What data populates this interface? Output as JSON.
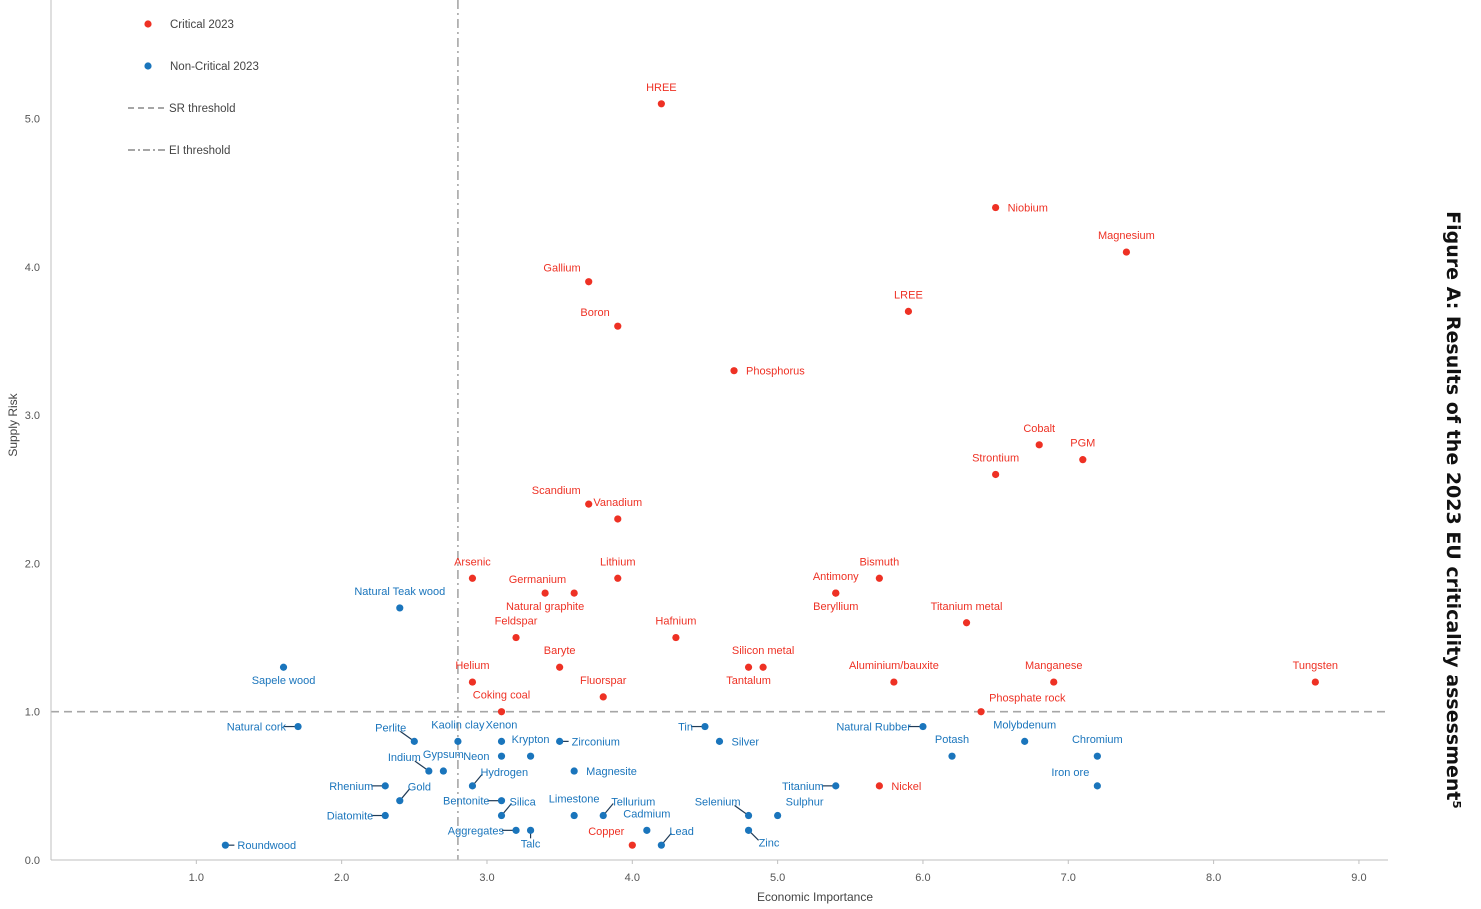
{
  "figure_title": "Figure A: Results of the 2023 EU criticality assessment⁵",
  "colors": {
    "critical": "#ee3124",
    "non_critical": "#1a75bc",
    "threshold": "#a6a6a6",
    "leader": "#1f3b57"
  },
  "chart_data": {
    "type": "scatter",
    "title": "",
    "xlabel": "Economic Importance",
    "ylabel": "Supply Risk",
    "xlim": [
      0,
      9.2
    ],
    "ylim": [
      0,
      5.8
    ],
    "x_ticks": [
      "1.0",
      "2.0",
      "3.0",
      "4.0",
      "5.0",
      "6.0",
      "7.0",
      "8.0",
      "9.0"
    ],
    "y_ticks": [
      "0.0",
      "1.0",
      "2.0",
      "3.0",
      "4.0",
      "5.0"
    ],
    "thresholds": {
      "sr": 1.0,
      "ei": 2.8
    },
    "legend": [
      {
        "label": "Critical 2023",
        "marker": "dot",
        "color": "#ee3124"
      },
      {
        "label": "Non-Critical 2023",
        "marker": "dot",
        "color": "#1a75bc"
      },
      {
        "label": "SR threshold",
        "marker": "dash"
      },
      {
        "label": "EI threshold",
        "marker": "dashdot"
      }
    ],
    "series": [
      {
        "name": "Critical 2023",
        "color": "#ee3124",
        "points": [
          {
            "label": "HREE",
            "x": 4.2,
            "y": 5.1,
            "pos": "above"
          },
          {
            "label": "Niobium",
            "x": 6.5,
            "y": 4.4,
            "pos": "right"
          },
          {
            "label": "Magnesium",
            "x": 7.4,
            "y": 4.1,
            "pos": "above"
          },
          {
            "label": "Gallium",
            "x": 3.7,
            "y": 3.9,
            "pos": "upleft"
          },
          {
            "label": "LREE",
            "x": 5.9,
            "y": 3.7,
            "pos": "above"
          },
          {
            "label": "Boron",
            "x": 3.9,
            "y": 3.6,
            "pos": "upleft"
          },
          {
            "label": "Phosphorus",
            "x": 4.7,
            "y": 3.3,
            "pos": "right"
          },
          {
            "label": "Cobalt",
            "x": 6.8,
            "y": 2.8,
            "pos": "above"
          },
          {
            "label": "PGM",
            "x": 7.1,
            "y": 2.7,
            "pos": "above"
          },
          {
            "label": "Strontium",
            "x": 6.5,
            "y": 2.6,
            "pos": "above"
          },
          {
            "label": "Scandium",
            "x": 3.7,
            "y": 2.4,
            "pos": "upleft"
          },
          {
            "label": "Vanadium",
            "x": 3.9,
            "y": 2.3,
            "pos": "above"
          },
          {
            "label": "Arsenic",
            "x": 2.9,
            "y": 1.9,
            "pos": "above"
          },
          {
            "label": "Lithium",
            "x": 3.9,
            "y": 1.9,
            "pos": "above"
          },
          {
            "label": "Bismuth",
            "x": 5.7,
            "y": 1.9,
            "pos": "above"
          },
          {
            "label": "Germanium",
            "x": 3.6,
            "y": 1.8,
            "pos": "upleft"
          },
          {
            "label": "Natural graphite",
            "x": 3.4,
            "y": 1.8,
            "pos": "below"
          },
          {
            "label": "Antimony",
            "x": 5.4,
            "y": 1.8,
            "pos": "above"
          },
          {
            "label": "Beryllium",
            "x": 5.4,
            "y": 1.8,
            "pos": "below"
          },
          {
            "label": "Titanium metal",
            "x": 6.3,
            "y": 1.6,
            "pos": "above"
          },
          {
            "label": "Feldspar",
            "x": 3.2,
            "y": 1.5,
            "pos": "above"
          },
          {
            "label": "Hafnium",
            "x": 4.3,
            "y": 1.5,
            "pos": "above"
          },
          {
            "label": "Baryte",
            "x": 3.5,
            "y": 1.3,
            "pos": "above"
          },
          {
            "label": "Tantalum",
            "x": 4.8,
            "y": 1.3,
            "pos": "below"
          },
          {
            "label": "Silicon metal",
            "x": 4.9,
            "y": 1.3,
            "pos": "above"
          },
          {
            "label": "Helium",
            "x": 2.9,
            "y": 1.2,
            "pos": "above"
          },
          {
            "label": "Aluminium/bauxite",
            "x": 5.8,
            "y": 1.2,
            "pos": "above"
          },
          {
            "label": "Manganese",
            "x": 6.9,
            "y": 1.2,
            "pos": "above"
          },
          {
            "label": "Tungsten",
            "x": 8.7,
            "y": 1.2,
            "pos": "above"
          },
          {
            "label": "Fluorspar",
            "x": 3.8,
            "y": 1.1,
            "pos": "above"
          },
          {
            "label": "Coking coal",
            "x": 3.1,
            "y": 1.0,
            "pos": "above"
          },
          {
            "label": "Phosphate rock",
            "x": 6.4,
            "y": 1.0,
            "pos": "upright"
          },
          {
            "label": "Nickel",
            "x": 5.7,
            "y": 0.5,
            "pos": "right"
          },
          {
            "label": "Copper",
            "x": 4.0,
            "y": 0.1,
            "pos": "upleft"
          }
        ]
      },
      {
        "name": "Non-Critical 2023",
        "color": "#1a75bc",
        "points": [
          {
            "label": "Natural Teak wood",
            "x": 2.4,
            "y": 1.7,
            "pos": "above"
          },
          {
            "label": "Sapele wood",
            "x": 1.6,
            "y": 1.3,
            "pos": "below"
          },
          {
            "label": "Natural cork",
            "x": 1.7,
            "y": 0.9,
            "pos": "left",
            "leader": true
          },
          {
            "label": "Perlite",
            "x": 2.5,
            "y": 0.8,
            "pos": "upleft",
            "leader": true
          },
          {
            "label": "Kaolin clay",
            "x": 2.8,
            "y": 0.8,
            "pos": "above"
          },
          {
            "label": "Xenon",
            "x": 3.1,
            "y": 0.8,
            "pos": "above"
          },
          {
            "label": "Krypton",
            "x": 3.3,
            "y": 0.7,
            "pos": "above"
          },
          {
            "label": "Zirconium",
            "x": 3.5,
            "y": 0.8,
            "pos": "right",
            "leader": true
          },
          {
            "label": "Gypsum",
            "x": 2.7,
            "y": 0.6,
            "pos": "above"
          },
          {
            "label": "Neon",
            "x": 3.1,
            "y": 0.7,
            "pos": "left"
          },
          {
            "label": "Indium",
            "x": 2.6,
            "y": 0.6,
            "pos": "upleft",
            "leader": true
          },
          {
            "label": "Magnesite",
            "x": 3.6,
            "y": 0.6,
            "pos": "right"
          },
          {
            "label": "Hydrogen",
            "x": 2.9,
            "y": 0.5,
            "pos": "upright",
            "leader": true
          },
          {
            "label": "Rhenium",
            "x": 2.3,
            "y": 0.5,
            "pos": "left",
            "leader": true
          },
          {
            "label": "Gold",
            "x": 2.4,
            "y": 0.4,
            "pos": "upright",
            "leader": true
          },
          {
            "label": "Bentonite",
            "x": 3.1,
            "y": 0.4,
            "pos": "left",
            "leader": true
          },
          {
            "label": "Silica",
            "x": 3.1,
            "y": 0.3,
            "pos": "upright",
            "leader": true
          },
          {
            "label": "Diatomite",
            "x": 2.3,
            "y": 0.3,
            "pos": "left",
            "leader": true
          },
          {
            "label": "Limestone",
            "x": 3.6,
            "y": 0.3,
            "pos": "above"
          },
          {
            "label": "Tellurium",
            "x": 3.8,
            "y": 0.3,
            "pos": "upright",
            "leader": true
          },
          {
            "label": "Cadmium",
            "x": 4.1,
            "y": 0.2,
            "pos": "above"
          },
          {
            "label": "Aggregates",
            "x": 3.2,
            "y": 0.2,
            "pos": "left",
            "leader": true
          },
          {
            "label": "Talc",
            "x": 3.3,
            "y": 0.2,
            "pos": "below",
            "leader": true
          },
          {
            "label": "Roundwood",
            "x": 1.2,
            "y": 0.1,
            "pos": "right",
            "leader": true
          },
          {
            "label": "Lead",
            "x": 4.2,
            "y": 0.1,
            "pos": "upright",
            "leader": true
          },
          {
            "label": "Tin",
            "x": 4.5,
            "y": 0.9,
            "pos": "left",
            "leader": true
          },
          {
            "label": "Silver",
            "x": 4.6,
            "y": 0.8,
            "pos": "right"
          },
          {
            "label": "Selenium",
            "x": 4.8,
            "y": 0.3,
            "pos": "upleft",
            "leader": true
          },
          {
            "label": "Zinc",
            "x": 4.8,
            "y": 0.2,
            "pos": "downright",
            "leader": true
          },
          {
            "label": "Sulphur",
            "x": 5.0,
            "y": 0.3,
            "pos": "upright"
          },
          {
            "label": "Titanium",
            "x": 5.4,
            "y": 0.5,
            "pos": "left",
            "leader": true
          },
          {
            "label": "Natural Rubber",
            "x": 6.0,
            "y": 0.9,
            "pos": "left",
            "leader": true
          },
          {
            "label": "Potash",
            "x": 6.2,
            "y": 0.7,
            "pos": "above"
          },
          {
            "label": "Molybdenum",
            "x": 6.7,
            "y": 0.8,
            "pos": "above"
          },
          {
            "label": "Chromium",
            "x": 7.2,
            "y": 0.7,
            "pos": "above"
          },
          {
            "label": "Iron ore",
            "x": 7.2,
            "y": 0.5,
            "pos": "upleft"
          }
        ]
      }
    ]
  }
}
